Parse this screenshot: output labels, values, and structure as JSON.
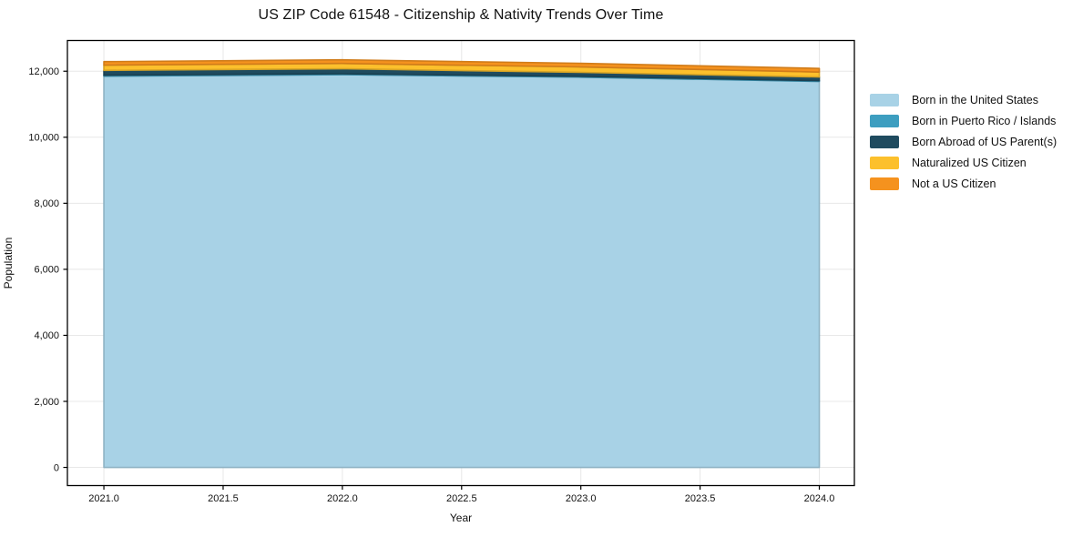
{
  "chart_data": {
    "type": "area",
    "stacked": true,
    "title": "US ZIP Code 61548 - Citizenship & Nativity Trends Over Time",
    "xlabel": "Year",
    "ylabel": "Population",
    "x": [
      2021,
      2022,
      2023,
      2024
    ],
    "series": [
      {
        "name": "Born in the United States",
        "color": "#A8D2E6",
        "values": [
          11850,
          11895,
          11820,
          11690
        ]
      },
      {
        "name": "Born in Puerto Rico / Islands",
        "color": "#3D9EC0",
        "values": [
          30,
          30,
          25,
          25
        ]
      },
      {
        "name": "Born Abroad of US Parent(s)",
        "color": "#1F4B5F",
        "values": [
          145,
          150,
          120,
          110
        ]
      },
      {
        "name": "Naturalized US Citizen",
        "color": "#FCC02C",
        "values": [
          160,
          160,
          165,
          150
        ]
      },
      {
        "name": "Not a US Citizen",
        "color": "#F5921E",
        "values": [
          105,
          110,
          110,
          110
        ]
      }
    ],
    "totals_by_year": [
      12290,
      12345,
      12240,
      12085
    ],
    "xlim": [
      2020.847,
      2024.147
    ],
    "ylim": [
      -550,
      12930
    ],
    "x_ticks": {
      "values": [
        2021.0,
        2021.5,
        2022.0,
        2022.5,
        2023.0,
        2023.5,
        2024.0
      ],
      "labels": [
        "2021.0",
        "2021.5",
        "2022.0",
        "2022.5",
        "2023.0",
        "2023.5",
        "2024.0"
      ]
    },
    "y_ticks": {
      "values": [
        0,
        2000,
        4000,
        6000,
        8000,
        10000,
        12000
      ],
      "labels": [
        "0",
        "2,000",
        "4,000",
        "6,000",
        "8,000",
        "10,000",
        "12,000"
      ]
    },
    "grid": true,
    "legend_position": "center-right-outside",
    "colors": {
      "grid": "#e8e8e8",
      "spine": "#000000",
      "text": "#111111",
      "background": "#ffffff"
    }
  }
}
